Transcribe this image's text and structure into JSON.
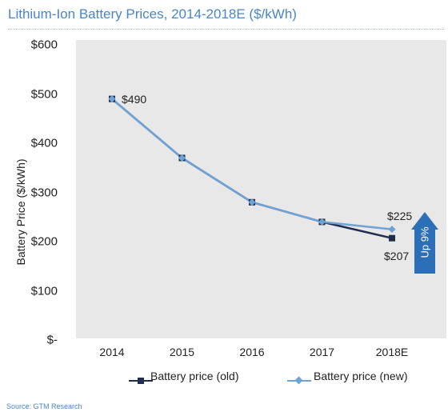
{
  "title": "Lithium-Ion Battery Prices, 2014-2018E ($/kWh)",
  "source": "Source: GTM Research",
  "colors": {
    "old": "#1f2d4e",
    "new": "#6fa3d6",
    "panel": "#e8e8e8",
    "arrow": "#2c6fb7",
    "title": "#4a86c5"
  },
  "chart_data": {
    "type": "line",
    "title": "Lithium-Ion Battery Prices, 2014-2018E ($/kWh)",
    "xlabel": "",
    "ylabel": "Battery Price ($/kWh)",
    "categories": [
      "2014",
      "2015",
      "2016",
      "2017",
      "2018E"
    ],
    "ylim": [
      0,
      600
    ],
    "yticks": [
      {
        "value": 600,
        "label": "$600"
      },
      {
        "value": 500,
        "label": "$500"
      },
      {
        "value": 400,
        "label": "$400"
      },
      {
        "value": 300,
        "label": "$300"
      },
      {
        "value": 200,
        "label": "$200"
      },
      {
        "value": 100,
        "label": "$100"
      },
      {
        "value": 0,
        "label": "$-"
      }
    ],
    "grid": false,
    "legend": "bottom",
    "series": [
      {
        "name": "Battery price (old)",
        "values": [
          490,
          370,
          280,
          240,
          207
        ],
        "marker": "square"
      },
      {
        "name": "Battery price (new)",
        "values": [
          490,
          370,
          280,
          240,
          225
        ],
        "marker": "diamond"
      }
    ],
    "annotations": {
      "first": "$490",
      "new_last": "$225",
      "old_last": "$207",
      "arrow": "Up 9%"
    }
  }
}
